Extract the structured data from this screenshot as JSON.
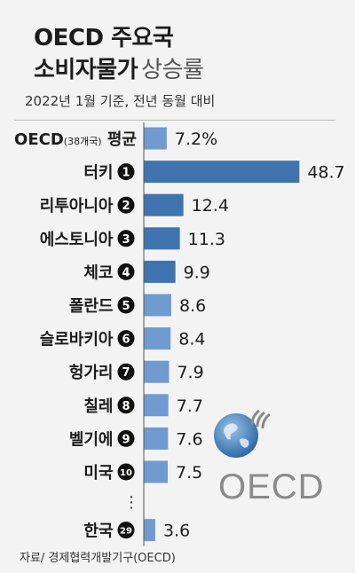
{
  "title": {
    "line1": "OECD 주요국",
    "line2_main": "소비자물가",
    "line2_sub": "상승률"
  },
  "subtitle": "2022년 1월 기준, 전년 동월 대비",
  "source": "자료/ 경제협력개발기구(OECD)",
  "logo_text": "OECD",
  "colors": {
    "dark_bar": "#3f74ae",
    "light_bar": "#6f9bd0",
    "background": "#f3f3f3",
    "logo_gray": "#8a8a8a"
  },
  "chart_data": {
    "type": "bar",
    "orientation": "horizontal",
    "categories": [
      "OECD",
      "터키",
      "리투아니아",
      "에스토니아",
      "체코",
      "폴란드",
      "슬로바키아",
      "헝가리",
      "칠레",
      "벨기에",
      "미국",
      "한국"
    ],
    "label_suffixes": [
      "(38개국) 평균",
      "",
      "",
      "",
      "",
      "",
      "",
      "",
      "",
      "",
      "",
      ""
    ],
    "ranks": [
      "",
      "1",
      "2",
      "3",
      "4",
      "5",
      "6",
      "7",
      "8",
      "9",
      "10",
      "29"
    ],
    "values": [
      7.2,
      48.7,
      12.4,
      11.3,
      9.9,
      8.6,
      8.4,
      7.9,
      7.7,
      7.6,
      7.5,
      3.6
    ],
    "value_labels": [
      "7.2%",
      "48.7",
      "12.4",
      "11.3",
      "9.9",
      "8.6",
      "8.4",
      "7.9",
      "7.7",
      "7.6",
      "7.5",
      "3.6"
    ],
    "ellipsis": "⋮",
    "xlim": [
      0,
      50
    ],
    "grid": false
  }
}
